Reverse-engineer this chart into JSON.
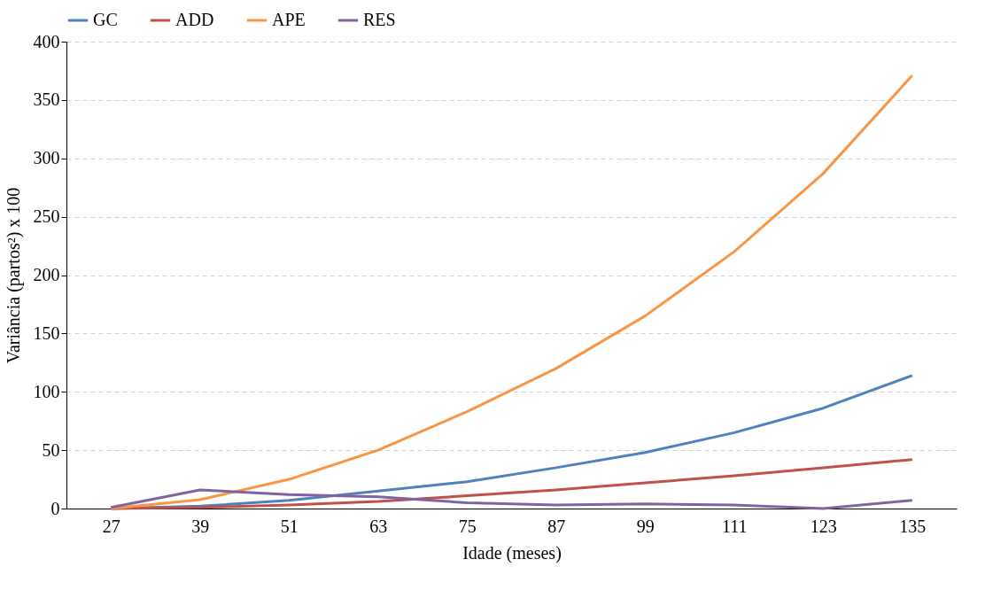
{
  "chart_data": {
    "type": "line",
    "xlabel": "Idade (meses)",
    "ylabel": "Variância (partos²) x 100",
    "categories": [
      "27",
      "39",
      "51",
      "63",
      "75",
      "87",
      "99",
      "111",
      "123",
      "135"
    ],
    "series": [
      {
        "name": "GC",
        "color": "#4f81bd",
        "values": [
          0,
          2,
          7,
          15,
          23,
          35,
          48,
          65,
          86,
          114
        ]
      },
      {
        "name": "ADD",
        "color": "#c0504d",
        "values": [
          0,
          1,
          3,
          6,
          11,
          16,
          22,
          28,
          35,
          42
        ]
      },
      {
        "name": "APE",
        "color": "#f79646",
        "values": [
          0,
          7.6,
          25,
          50,
          83,
          120,
          165,
          220,
          287,
          371
        ]
      },
      {
        "name": "RES",
        "color": "#8064a2",
        "values": [
          1,
          16,
          12,
          10,
          5,
          3,
          4,
          3,
          0,
          7
        ]
      }
    ],
    "ylim": [
      0,
      400
    ],
    "yticks": [
      0,
      50,
      100,
      150,
      200,
      250,
      300,
      350,
      400
    ],
    "grid": "y",
    "legend": "top",
    "marker": "none",
    "line_style": "solid"
  }
}
